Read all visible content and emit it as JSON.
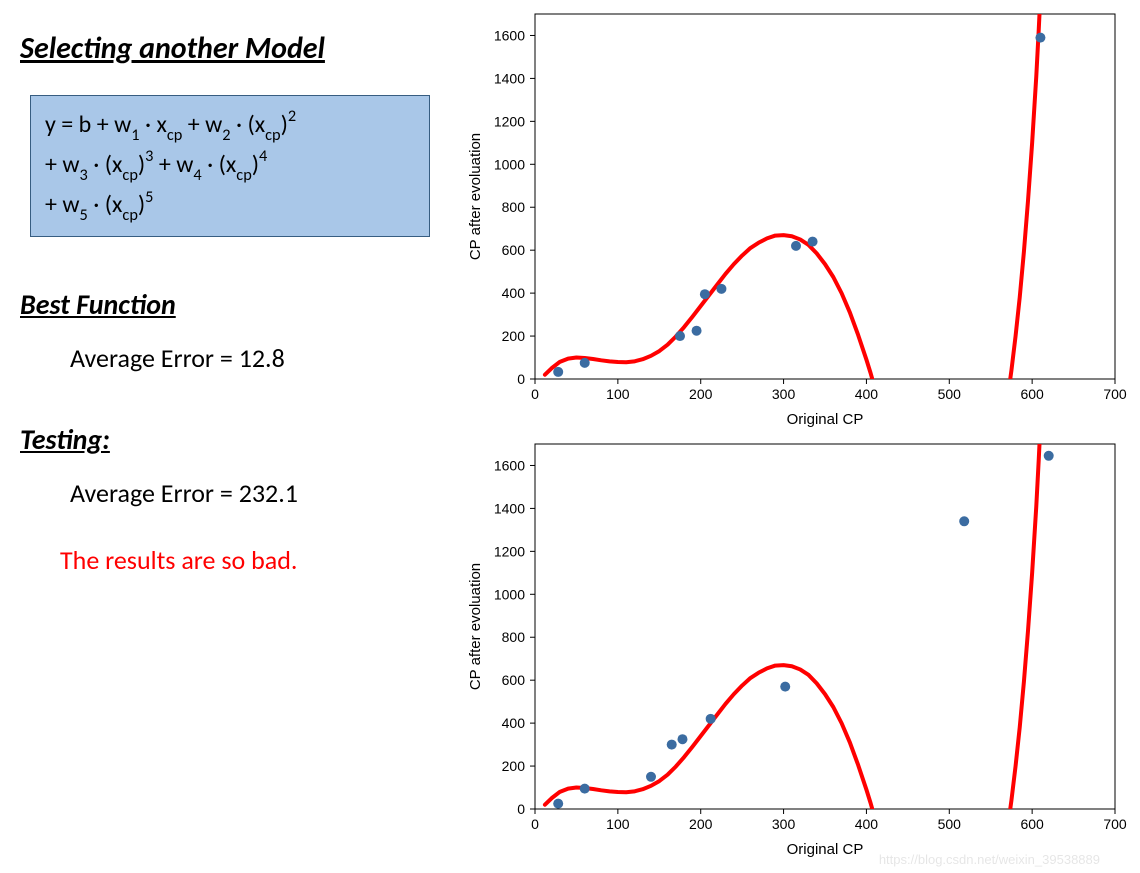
{
  "left": {
    "heading": "Selecting another Model",
    "formula_html": "y = b + w<span class='sub'>1</span> · x<span class='sub'>cp</span> + w<span class='sub'>2</span> · (x<span class='sub'>cp</span>)<span class='sup'>2</span><br>+ w<span class='sub'>3</span> · (x<span class='sub'>cp</span>)<span class='sup'>3</span> + w<span class='sub'>4</span> · (x<span class='sub'>cp</span>)<span class='sup'>4</span><br>+ w<span class='sub'>5</span> · (x<span class='sub'>cp</span>)<span class='sup'>5</span>",
    "best_heading": "Best Function",
    "best_error": "Average Error = 12.8",
    "test_heading": "Testing:",
    "test_error": "Average Error = 232.1",
    "bad_text": "The results are so bad."
  },
  "charts": {
    "xlabel": "Original CP",
    "ylabel": "CP after evoluation",
    "xlim": [
      0,
      700
    ],
    "ylim": [
      0,
      1700
    ],
    "xticks": [
      0,
      100,
      200,
      300,
      400,
      500,
      600,
      700
    ],
    "yticks": [
      0,
      200,
      400,
      600,
      800,
      1000,
      1200,
      1400,
      1600
    ],
    "line_color": "#ff0000",
    "line_width": 4,
    "point_color": "#3b6ca1",
    "point_radius": 5,
    "border_color": "#000000",
    "tick_len": 5,
    "curve": [
      [
        12,
        20
      ],
      [
        20,
        50
      ],
      [
        30,
        80
      ],
      [
        40,
        95
      ],
      [
        50,
        100
      ],
      [
        60,
        98
      ],
      [
        70,
        93
      ],
      [
        80,
        87
      ],
      [
        90,
        82
      ],
      [
        100,
        79
      ],
      [
        110,
        78
      ],
      [
        120,
        82
      ],
      [
        130,
        92
      ],
      [
        140,
        108
      ],
      [
        150,
        130
      ],
      [
        160,
        160
      ],
      [
        170,
        198
      ],
      [
        180,
        242
      ],
      [
        190,
        290
      ],
      [
        200,
        340
      ],
      [
        210,
        390
      ],
      [
        220,
        440
      ],
      [
        230,
        490
      ],
      [
        240,
        535
      ],
      [
        250,
        575
      ],
      [
        260,
        610
      ],
      [
        270,
        635
      ],
      [
        280,
        655
      ],
      [
        290,
        668
      ],
      [
        300,
        670
      ],
      [
        310,
        665
      ],
      [
        320,
        650
      ],
      [
        330,
        625
      ],
      [
        340,
        585
      ],
      [
        350,
        535
      ],
      [
        360,
        475
      ],
      [
        370,
        400
      ],
      [
        380,
        310
      ],
      [
        390,
        205
      ],
      [
        400,
        90
      ],
      [
        405,
        28
      ],
      [
        410,
        -40
      ],
      [
        415,
        -110
      ],
      [
        570,
        -100
      ],
      [
        575,
        40
      ],
      [
        580,
        200
      ],
      [
        585,
        380
      ],
      [
        590,
        590
      ],
      [
        595,
        830
      ],
      [
        600,
        1100
      ],
      [
        605,
        1410
      ],
      [
        608,
        1630
      ],
      [
        610,
        1790
      ]
    ],
    "top_points": [
      [
        28,
        33
      ],
      [
        60,
        75
      ],
      [
        175,
        200
      ],
      [
        195,
        225
      ],
      [
        205,
        395
      ],
      [
        225,
        420
      ],
      [
        315,
        620
      ],
      [
        335,
        640
      ],
      [
        610,
        1590
      ]
    ],
    "bottom_points": [
      [
        28,
        25
      ],
      [
        60,
        95
      ],
      [
        140,
        150
      ],
      [
        165,
        300
      ],
      [
        178,
        325
      ],
      [
        212,
        420
      ],
      [
        302,
        570
      ],
      [
        518,
        1340
      ],
      [
        620,
        1645
      ]
    ]
  },
  "watermark": "https://blog.csdn.net/weixin_39538889"
}
